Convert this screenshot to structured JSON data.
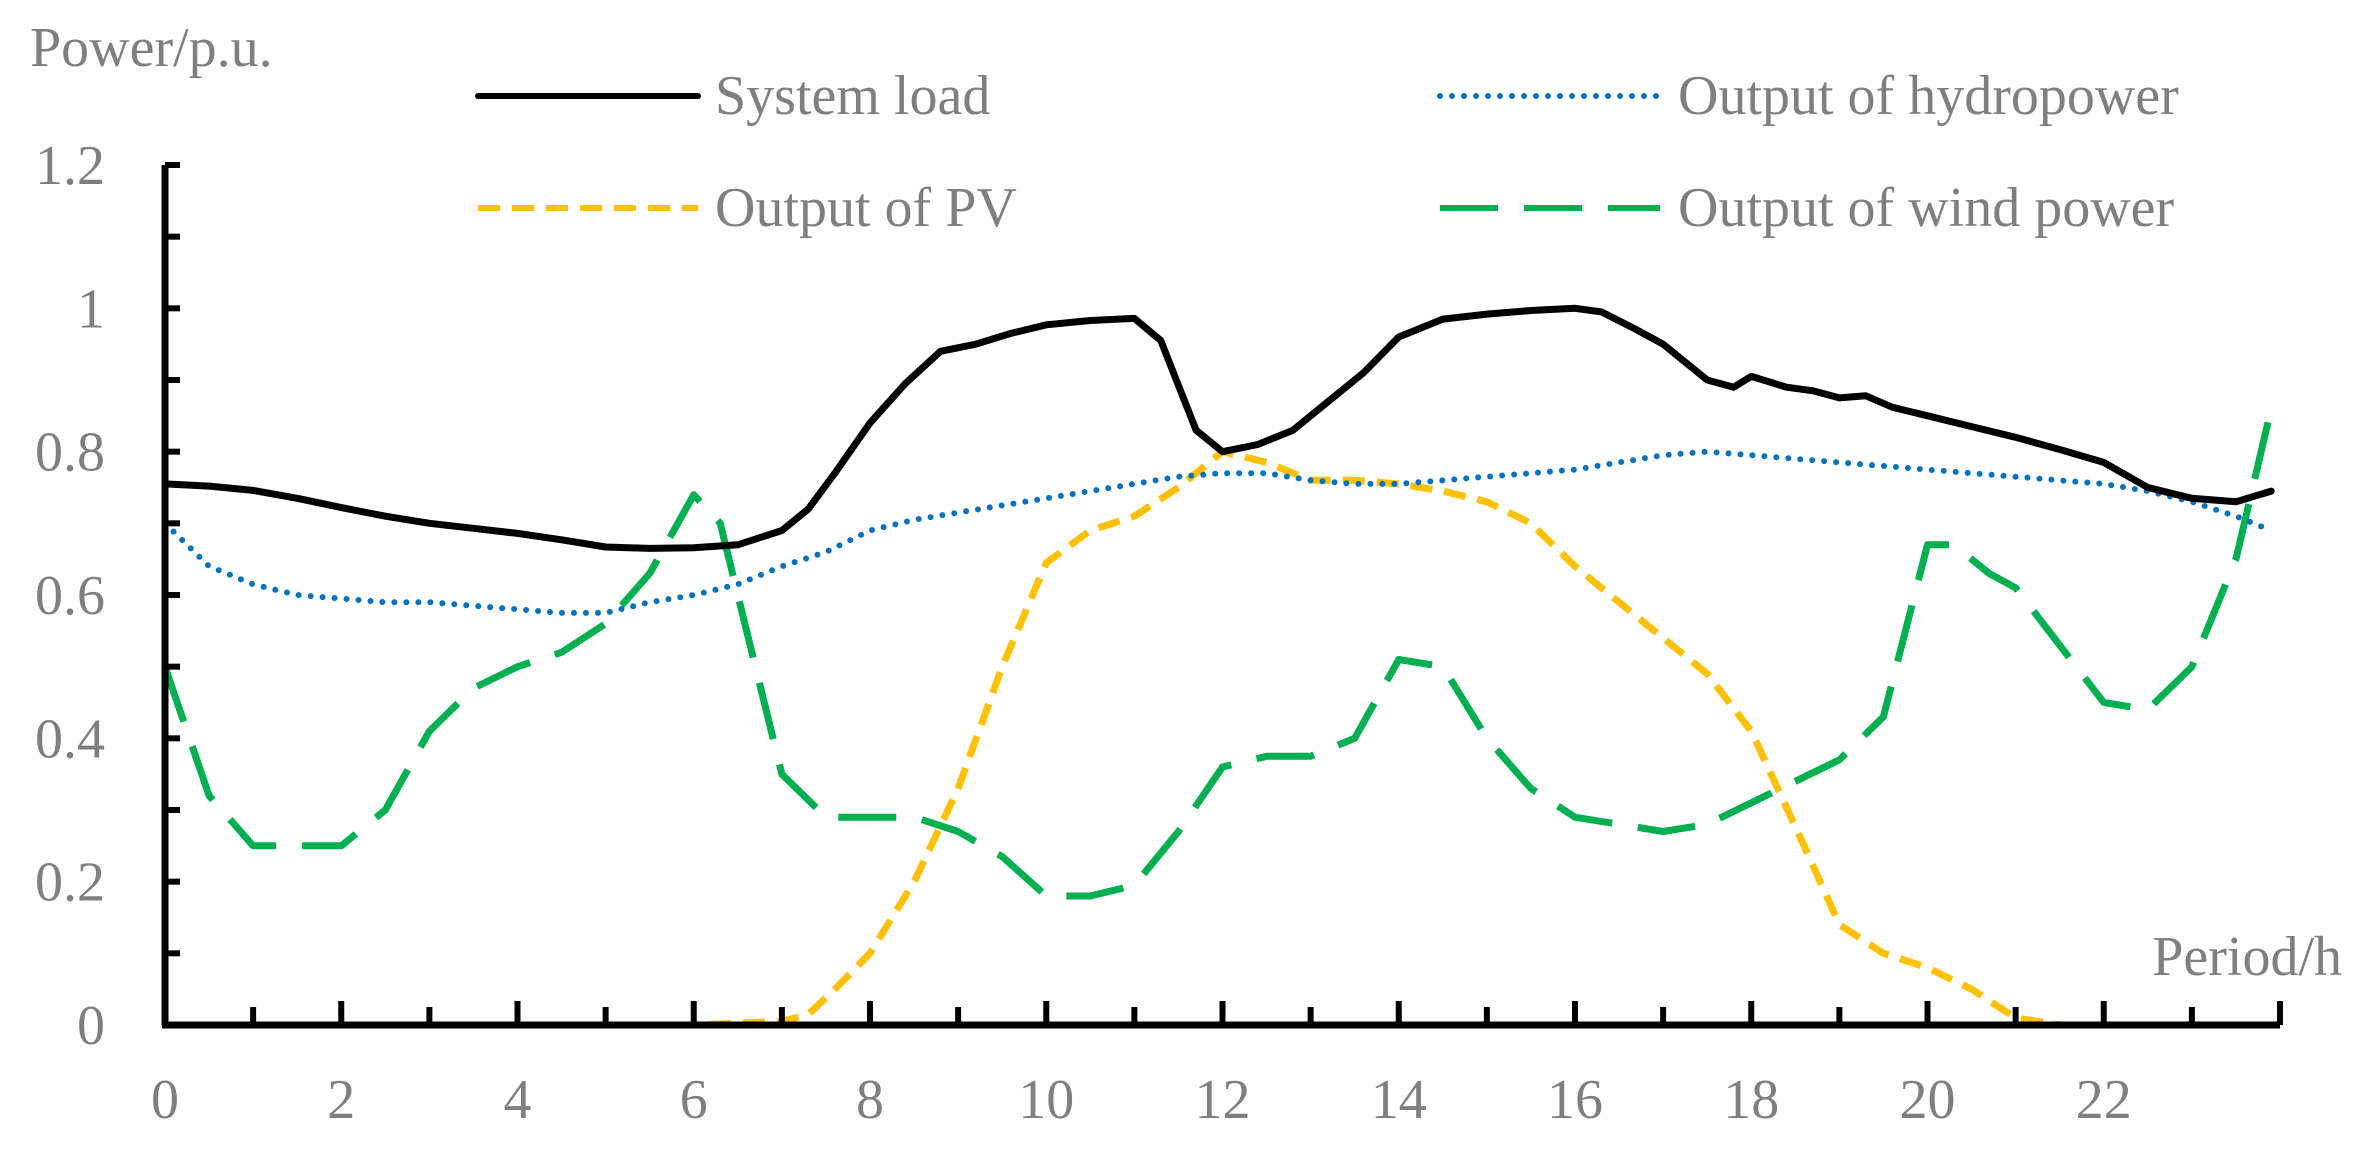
{
  "chart_data": {
    "type": "line",
    "title": "",
    "ylabel": "Power/p.u.",
    "xlabel": "Period/h",
    "xlim": [
      0,
      24
    ],
    "ylim": [
      0,
      1.2
    ],
    "y_ticks": [
      0,
      0.2,
      0.4,
      0.6,
      0.8,
      1,
      1.2
    ],
    "y_tick_labels": [
      "0",
      "0.2",
      "0.4",
      "0.6",
      "0.8",
      "1",
      "1.2"
    ],
    "x_ticks": [
      0,
      2,
      4,
      6,
      8,
      10,
      12,
      14,
      16,
      18,
      20,
      22
    ],
    "x_tick_labels": [
      "0",
      "2",
      "4",
      "6",
      "8",
      "10",
      "12",
      "14",
      "16",
      "18",
      "20",
      "22"
    ],
    "grid": false,
    "legend": "top",
    "series": [
      {
        "name": "System load",
        "color": "#000000",
        "style": "solid",
        "x": [
          0,
          0.5,
          1,
          1.5,
          2,
          2.5,
          3,
          3.5,
          4,
          4.5,
          5,
          5.5,
          6,
          6.5,
          7,
          7.3,
          7.6,
          8,
          8.4,
          8.8,
          9.2,
          9.6,
          10,
          10.5,
          11,
          11.3,
          11.7,
          12,
          12.4,
          12.8,
          13.2,
          13.6,
          14,
          14.5,
          15,
          15.5,
          16,
          16.3,
          16.7,
          17,
          17.5,
          17.8,
          18,
          18.4,
          18.7,
          19,
          19.3,
          19.6,
          20,
          20.5,
          21,
          21.5,
          22,
          22.5,
          23,
          23.5,
          23.9
        ],
        "values": [
          0.755,
          0.752,
          0.746,
          0.735,
          0.722,
          0.71,
          0.7,
          0.693,
          0.686,
          0.677,
          0.667,
          0.665,
          0.666,
          0.67,
          0.69,
          0.72,
          0.77,
          0.84,
          0.895,
          0.94,
          0.95,
          0.965,
          0.977,
          0.983,
          0.986,
          0.955,
          0.83,
          0.8,
          0.81,
          0.83,
          0.87,
          0.91,
          0.96,
          0.985,
          0.992,
          0.997,
          1.0,
          0.995,
          0.97,
          0.95,
          0.9,
          0.89,
          0.905,
          0.89,
          0.885,
          0.875,
          0.878,
          0.862,
          0.85,
          0.835,
          0.82,
          0.803,
          0.785,
          0.75,
          0.735,
          0.73,
          0.745
        ]
      },
      {
        "name": "Output of hydropower",
        "color": "#0070c0",
        "style": "dotted",
        "x": [
          0,
          0.5,
          1,
          1.5,
          2,
          2.5,
          3,
          3.5,
          4,
          4.5,
          5,
          5.5,
          6,
          6.5,
          7,
          7.5,
          8,
          8.5,
          9,
          9.5,
          10,
          10.5,
          11,
          11.5,
          12,
          12.5,
          13,
          13.5,
          14,
          14.5,
          15,
          15.5,
          16,
          16.5,
          17,
          17.5,
          18,
          18.5,
          19,
          19.5,
          20,
          20.5,
          21,
          21.5,
          22,
          22.5,
          23,
          23.5,
          23.9
        ],
        "values": [
          0.7,
          0.64,
          0.615,
          0.6,
          0.595,
          0.59,
          0.59,
          0.585,
          0.58,
          0.575,
          0.575,
          0.59,
          0.6,
          0.615,
          0.64,
          0.66,
          0.69,
          0.705,
          0.715,
          0.725,
          0.735,
          0.745,
          0.755,
          0.765,
          0.77,
          0.77,
          0.76,
          0.755,
          0.755,
          0.76,
          0.765,
          0.77,
          0.775,
          0.785,
          0.795,
          0.8,
          0.795,
          0.79,
          0.785,
          0.78,
          0.775,
          0.77,
          0.765,
          0.76,
          0.755,
          0.745,
          0.73,
          0.71,
          0.69
        ]
      },
      {
        "name": "Output of PV",
        "color": "#ffc000",
        "style": "dashed",
        "x": [
          0,
          1,
          2,
          3,
          4,
          5,
          6,
          7,
          7.3,
          7.6,
          8,
          8.5,
          9,
          9.5,
          10,
          10.5,
          11,
          11.5,
          12,
          12.5,
          13,
          13.5,
          14,
          14.5,
          15,
          15.5,
          16,
          16.5,
          17,
          17.5,
          18,
          18.3,
          18.6,
          19,
          19.5,
          20,
          20.5,
          21,
          21.5,
          22,
          23,
          23.9
        ],
        "values": [
          0,
          0,
          0,
          0,
          0,
          0,
          0,
          0.005,
          0.015,
          0.05,
          0.1,
          0.2,
          0.33,
          0.5,
          0.645,
          0.69,
          0.71,
          0.75,
          0.8,
          0.785,
          0.76,
          0.76,
          0.755,
          0.745,
          0.73,
          0.7,
          0.64,
          0.59,
          0.54,
          0.49,
          0.41,
          0.33,
          0.25,
          0.14,
          0.1,
          0.08,
          0.05,
          0.01,
          0,
          0,
          0,
          0
        ]
      },
      {
        "name": "Output of wind power",
        "color": "#00b050",
        "style": "longdash",
        "x": [
          0,
          0.5,
          1,
          1.5,
          2,
          2.5,
          3,
          3.5,
          4,
          4.5,
          5,
          5.5,
          6,
          6.3,
          6.6,
          7,
          7.5,
          8,
          8.5,
          9,
          9.5,
          10,
          10.5,
          11,
          11.5,
          12,
          12.5,
          13,
          13.5,
          14,
          14.5,
          15,
          15.5,
          16,
          16.5,
          17,
          17.5,
          18,
          18.5,
          19,
          19.5,
          20,
          20.3,
          20.7,
          21,
          21.5,
          22,
          22.5,
          23,
          23.5,
          23.9
        ],
        "values": [
          0.5,
          0.32,
          0.25,
          0.25,
          0.25,
          0.3,
          0.41,
          0.47,
          0.5,
          0.52,
          0.56,
          0.63,
          0.74,
          0.7,
          0.55,
          0.35,
          0.29,
          0.29,
          0.29,
          0.27,
          0.235,
          0.18,
          0.18,
          0.195,
          0.27,
          0.36,
          0.375,
          0.375,
          0.4,
          0.51,
          0.5,
          0.4,
          0.33,
          0.29,
          0.28,
          0.27,
          0.28,
          0.31,
          0.34,
          0.37,
          0.43,
          0.67,
          0.67,
          0.63,
          0.61,
          0.53,
          0.45,
          0.44,
          0.5,
          0.65,
          0.86
        ]
      }
    ]
  }
}
